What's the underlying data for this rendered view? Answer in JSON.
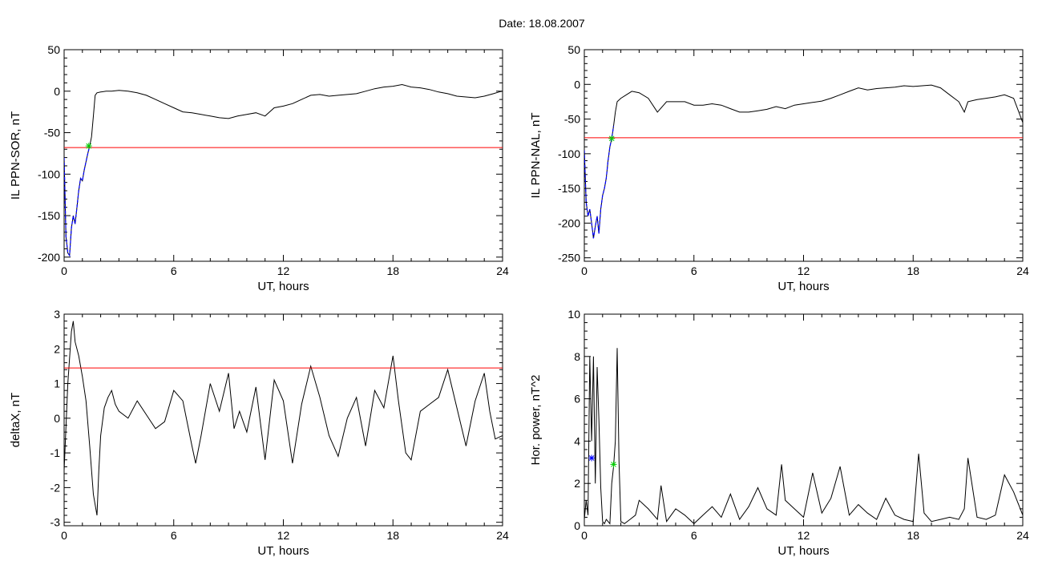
{
  "title": "Date:  18.08.2007",
  "chart_data": [
    {
      "type": "line",
      "id": "sor",
      "title": "",
      "xlabel": "UT, hours",
      "ylabel": "IL PPN-SOR, nT",
      "xlim": [
        0,
        24
      ],
      "ylim": [
        -205,
        50
      ],
      "xticks": [
        0,
        6,
        12,
        18,
        24
      ],
      "yticks": [
        50,
        0,
        -50,
        -100,
        -150,
        -200
      ],
      "threshold": -68,
      "threshold_color": "#ff0000",
      "highlight_color": "#0000ff",
      "highlight_until": 1.4,
      "markers": [
        {
          "x": 1.35,
          "y": -66,
          "color": "#00cc00"
        }
      ],
      "series": [
        {
          "x": [
            0,
            0.1,
            0.2,
            0.3,
            0.4,
            0.5,
            0.6,
            0.7,
            0.8,
            0.9,
            1.0,
            1.1,
            1.2,
            1.3,
            1.4,
            1.5,
            1.6,
            1.7,
            1.8,
            2.0,
            2.3,
            2.6,
            3.0,
            3.5,
            4.0,
            4.5,
            5.0,
            5.5,
            6.0,
            6.5,
            7.0,
            7.5,
            8.0,
            8.5,
            9.0,
            9.5,
            10.0,
            10.5,
            11.0,
            11.5,
            12.0,
            12.5,
            13.0,
            13.5,
            14.0,
            14.5,
            15.0,
            15.5,
            16.0,
            16.5,
            17.0,
            17.5,
            18.0,
            18.5,
            19.0,
            19.5,
            20.0,
            20.5,
            21.0,
            21.5,
            22.0,
            22.5,
            23.0,
            23.5,
            23.8,
            24.0
          ],
          "y": [
            -80,
            -175,
            -195,
            -198,
            -165,
            -150,
            -160,
            -140,
            -120,
            -105,
            -108,
            -95,
            -85,
            -75,
            -66,
            -55,
            -30,
            -5,
            -2,
            -1,
            0,
            0,
            1,
            0,
            -2,
            -5,
            -10,
            -15,
            -20,
            -25,
            -26,
            -28,
            -30,
            -32,
            -33,
            -30,
            -28,
            -26,
            -30,
            -20,
            -18,
            -15,
            -10,
            -5,
            -4,
            -6,
            -5,
            -4,
            -3,
            0,
            3,
            5,
            6,
            8,
            5,
            4,
            2,
            -1,
            -3,
            -6,
            -7,
            -8,
            -6,
            -3,
            -1,
            0
          ]
        }
      ]
    },
    {
      "type": "line",
      "id": "nal",
      "title": "",
      "xlabel": "UT, hours",
      "ylabel": "IL PPN-NAL, nT",
      "xlim": [
        0,
        24
      ],
      "ylim": [
        -255,
        50
      ],
      "xticks": [
        0,
        6,
        12,
        18,
        24
      ],
      "yticks": [
        50,
        0,
        -50,
        -100,
        -150,
        -200,
        -250
      ],
      "threshold": -77,
      "threshold_color": "#ff0000",
      "highlight_color": "#0000ff",
      "highlight_until": 1.6,
      "markers": [
        {
          "x": 1.5,
          "y": -78,
          "color": "#00cc00"
        }
      ],
      "series": [
        {
          "x": [
            0,
            0.1,
            0.2,
            0.3,
            0.4,
            0.5,
            0.6,
            0.7,
            0.8,
            0.9,
            1.0,
            1.1,
            1.2,
            1.3,
            1.4,
            1.5,
            1.6,
            1.7,
            1.8,
            2.0,
            2.3,
            2.6,
            3.0,
            3.5,
            4.0,
            4.5,
            5.0,
            5.5,
            6.0,
            6.5,
            7.0,
            7.5,
            8.0,
            8.5,
            9.0,
            9.5,
            10.0,
            10.5,
            11.0,
            11.5,
            12.0,
            12.5,
            13.0,
            13.5,
            14.0,
            14.5,
            15.0,
            15.5,
            16.0,
            16.5,
            17.0,
            17.5,
            18.0,
            18.5,
            19.0,
            19.5,
            20.0,
            20.5,
            20.8,
            21.0,
            21.5,
            22.0,
            22.5,
            23.0,
            23.5,
            24.0
          ],
          "y": [
            -95,
            -170,
            -190,
            -180,
            -200,
            -222,
            -205,
            -190,
            -215,
            -180,
            -160,
            -150,
            -135,
            -110,
            -90,
            -78,
            -60,
            -40,
            -25,
            -20,
            -15,
            -10,
            -12,
            -20,
            -40,
            -25,
            -25,
            -25,
            -30,
            -30,
            -28,
            -30,
            -35,
            -40,
            -40,
            -38,
            -36,
            -32,
            -35,
            -30,
            -28,
            -26,
            -24,
            -20,
            -15,
            -10,
            -5,
            -8,
            -6,
            -5,
            -4,
            -2,
            -3,
            -2,
            -1,
            -5,
            -15,
            -25,
            -40,
            -25,
            -22,
            -20,
            -18,
            -15,
            -20,
            -55
          ]
        }
      ]
    },
    {
      "type": "line",
      "id": "deltax",
      "title": "",
      "xlabel": "UT, hours",
      "ylabel": "deltaX, nT",
      "xlim": [
        0,
        24
      ],
      "ylim": [
        -3.1,
        3.0
      ],
      "xticks": [
        0,
        6,
        12,
        18,
        24
      ],
      "yticks": [
        3,
        2,
        1,
        0,
        -1,
        -2,
        -3
      ],
      "threshold": 1.45,
      "threshold_color": "#ff0000",
      "series": [
        {
          "x": [
            0,
            0.2,
            0.4,
            0.5,
            0.6,
            0.8,
            1.0,
            1.2,
            1.4,
            1.6,
            1.8,
            1.9,
            2.0,
            2.2,
            2.4,
            2.6,
            2.8,
            3.0,
            3.5,
            4.0,
            4.5,
            5.0,
            5.5,
            6.0,
            6.5,
            7.0,
            7.2,
            7.5,
            8.0,
            8.5,
            9.0,
            9.3,
            9.6,
            10.0,
            10.5,
            11.0,
            11.5,
            12.0,
            12.5,
            13.0,
            13.5,
            14.0,
            14.5,
            15.0,
            15.5,
            16.0,
            16.5,
            17.0,
            17.5,
            18.0,
            18.3,
            18.7,
            19.0,
            19.5,
            20.0,
            20.5,
            21.0,
            21.5,
            22.0,
            22.5,
            23.0,
            23.3,
            23.6,
            24.0
          ],
          "y": [
            -1.5,
            1.0,
            2.5,
            2.8,
            2.2,
            1.8,
            1.2,
            0.5,
            -0.8,
            -2.2,
            -2.8,
            -1.5,
            -0.5,
            0.3,
            0.6,
            0.8,
            0.4,
            0.2,
            0.0,
            0.5,
            0.1,
            -0.3,
            -0.1,
            0.8,
            0.5,
            -0.8,
            -1.3,
            -0.5,
            1.0,
            0.2,
            1.3,
            -0.3,
            0.2,
            -0.4,
            0.9,
            -1.2,
            1.1,
            0.5,
            -1.3,
            0.4,
            1.5,
            0.6,
            -0.5,
            -1.1,
            0.0,
            0.6,
            -0.8,
            0.8,
            0.3,
            1.8,
            0.5,
            -1.0,
            -1.2,
            0.2,
            0.4,
            0.6,
            1.4,
            0.3,
            -0.8,
            0.5,
            1.3,
            0.2,
            -0.6,
            -0.5
          ]
        }
      ]
    },
    {
      "type": "line",
      "id": "power",
      "title": "",
      "xlabel": "UT, hours",
      "ylabel": "Hor. power, nT^2",
      "xlim": [
        0,
        24
      ],
      "ylim": [
        0,
        10
      ],
      "xticks": [
        0,
        6,
        12,
        18,
        24
      ],
      "yticks": [
        10,
        8,
        6,
        4,
        2,
        0
      ],
      "markers": [
        {
          "x": 0.4,
          "y": 3.2,
          "color": "#0000ff"
        },
        {
          "x": 1.6,
          "y": 2.9,
          "color": "#00cc00"
        }
      ],
      "series": [
        {
          "x": [
            0,
            0.1,
            0.2,
            0.3,
            0.4,
            0.5,
            0.6,
            0.7,
            0.8,
            0.9,
            1.0,
            1.1,
            1.2,
            1.3,
            1.4,
            1.5,
            1.6,
            1.7,
            1.8,
            1.9,
            2.0,
            2.2,
            2.5,
            2.8,
            3.0,
            3.5,
            4.0,
            4.2,
            4.5,
            5.0,
            5.5,
            6.0,
            6.5,
            7.0,
            7.5,
            8.0,
            8.5,
            9.0,
            9.5,
            10.0,
            10.5,
            10.8,
            11.0,
            11.5,
            12.0,
            12.5,
            13.0,
            13.5,
            14.0,
            14.5,
            15.0,
            15.5,
            16.0,
            16.5,
            17.0,
            17.5,
            18.0,
            18.3,
            18.6,
            19.0,
            19.5,
            20.0,
            20.5,
            20.8,
            21.0,
            21.5,
            22.0,
            22.5,
            23.0,
            23.5,
            24.0
          ],
          "y": [
            0.3,
            1.2,
            0.5,
            8.0,
            4.0,
            8.0,
            2.0,
            7.5,
            5.0,
            1.8,
            0.2,
            0.1,
            0.3,
            0.2,
            0.1,
            2.0,
            2.8,
            4.0,
            8.4,
            3.0,
            0.2,
            0.1,
            0.3,
            0.5,
            1.2,
            0.8,
            0.3,
            1.9,
            0.2,
            0.8,
            0.5,
            0.1,
            0.5,
            0.9,
            0.4,
            1.5,
            0.3,
            0.9,
            1.8,
            0.8,
            0.5,
            2.9,
            1.2,
            0.8,
            0.4,
            2.5,
            0.6,
            1.3,
            2.8,
            0.5,
            1.0,
            0.6,
            0.3,
            1.3,
            0.5,
            0.3,
            0.2,
            3.4,
            0.6,
            0.2,
            0.3,
            0.4,
            0.3,
            0.8,
            3.2,
            0.4,
            0.3,
            0.5,
            2.4,
            1.6,
            0.5
          ]
        }
      ]
    }
  ]
}
